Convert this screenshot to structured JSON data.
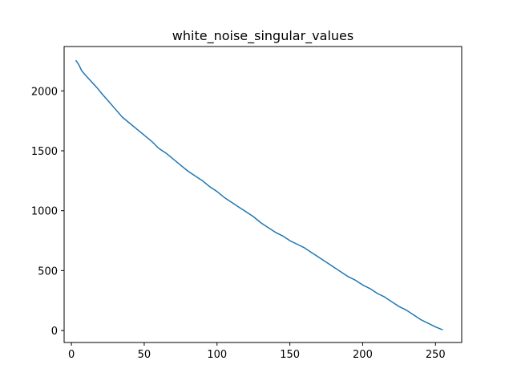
{
  "chart_data": {
    "type": "line",
    "title": "white_noise_singular_values",
    "xlabel": "",
    "ylabel": "",
    "xlim": [
      -5,
      268
    ],
    "ylim": [
      -100,
      2370
    ],
    "grid": false,
    "legend": "none",
    "x_ticks": [
      0,
      50,
      100,
      150,
      200,
      250
    ],
    "x_tick_labels": [
      "0",
      "50",
      "100",
      "150",
      "200",
      "250"
    ],
    "y_ticks": [
      0,
      500,
      1000,
      1500,
      2000
    ],
    "y_tick_labels": [
      "0",
      "500",
      "1000",
      "1500",
      "2000"
    ],
    "series": [
      {
        "color": "#1f77b4",
        "x": [
          3,
          5,
          7,
          9,
          12,
          15,
          18,
          21,
          25,
          30,
          35,
          40,
          45,
          50,
          55,
          60,
          65,
          70,
          75,
          80,
          85,
          90,
          95,
          100,
          105,
          110,
          115,
          120,
          125,
          130,
          135,
          140,
          145,
          150,
          155,
          160,
          165,
          170,
          175,
          180,
          185,
          190,
          195,
          200,
          205,
          210,
          215,
          220,
          225,
          230,
          235,
          240,
          245,
          250,
          255
        ],
        "y": [
          2255,
          2220,
          2170,
          2140,
          2100,
          2060,
          2020,
          1975,
          1920,
          1850,
          1780,
          1730,
          1680,
          1630,
          1580,
          1520,
          1480,
          1430,
          1380,
          1330,
          1290,
          1250,
          1200,
          1160,
          1110,
          1070,
          1030,
          990,
          950,
          900,
          860,
          820,
          790,
          750,
          720,
          690,
          650,
          610,
          570,
          530,
          490,
          450,
          420,
          380,
          350,
          310,
          280,
          240,
          200,
          170,
          130,
          90,
          60,
          30,
          5
        ]
      }
    ]
  }
}
